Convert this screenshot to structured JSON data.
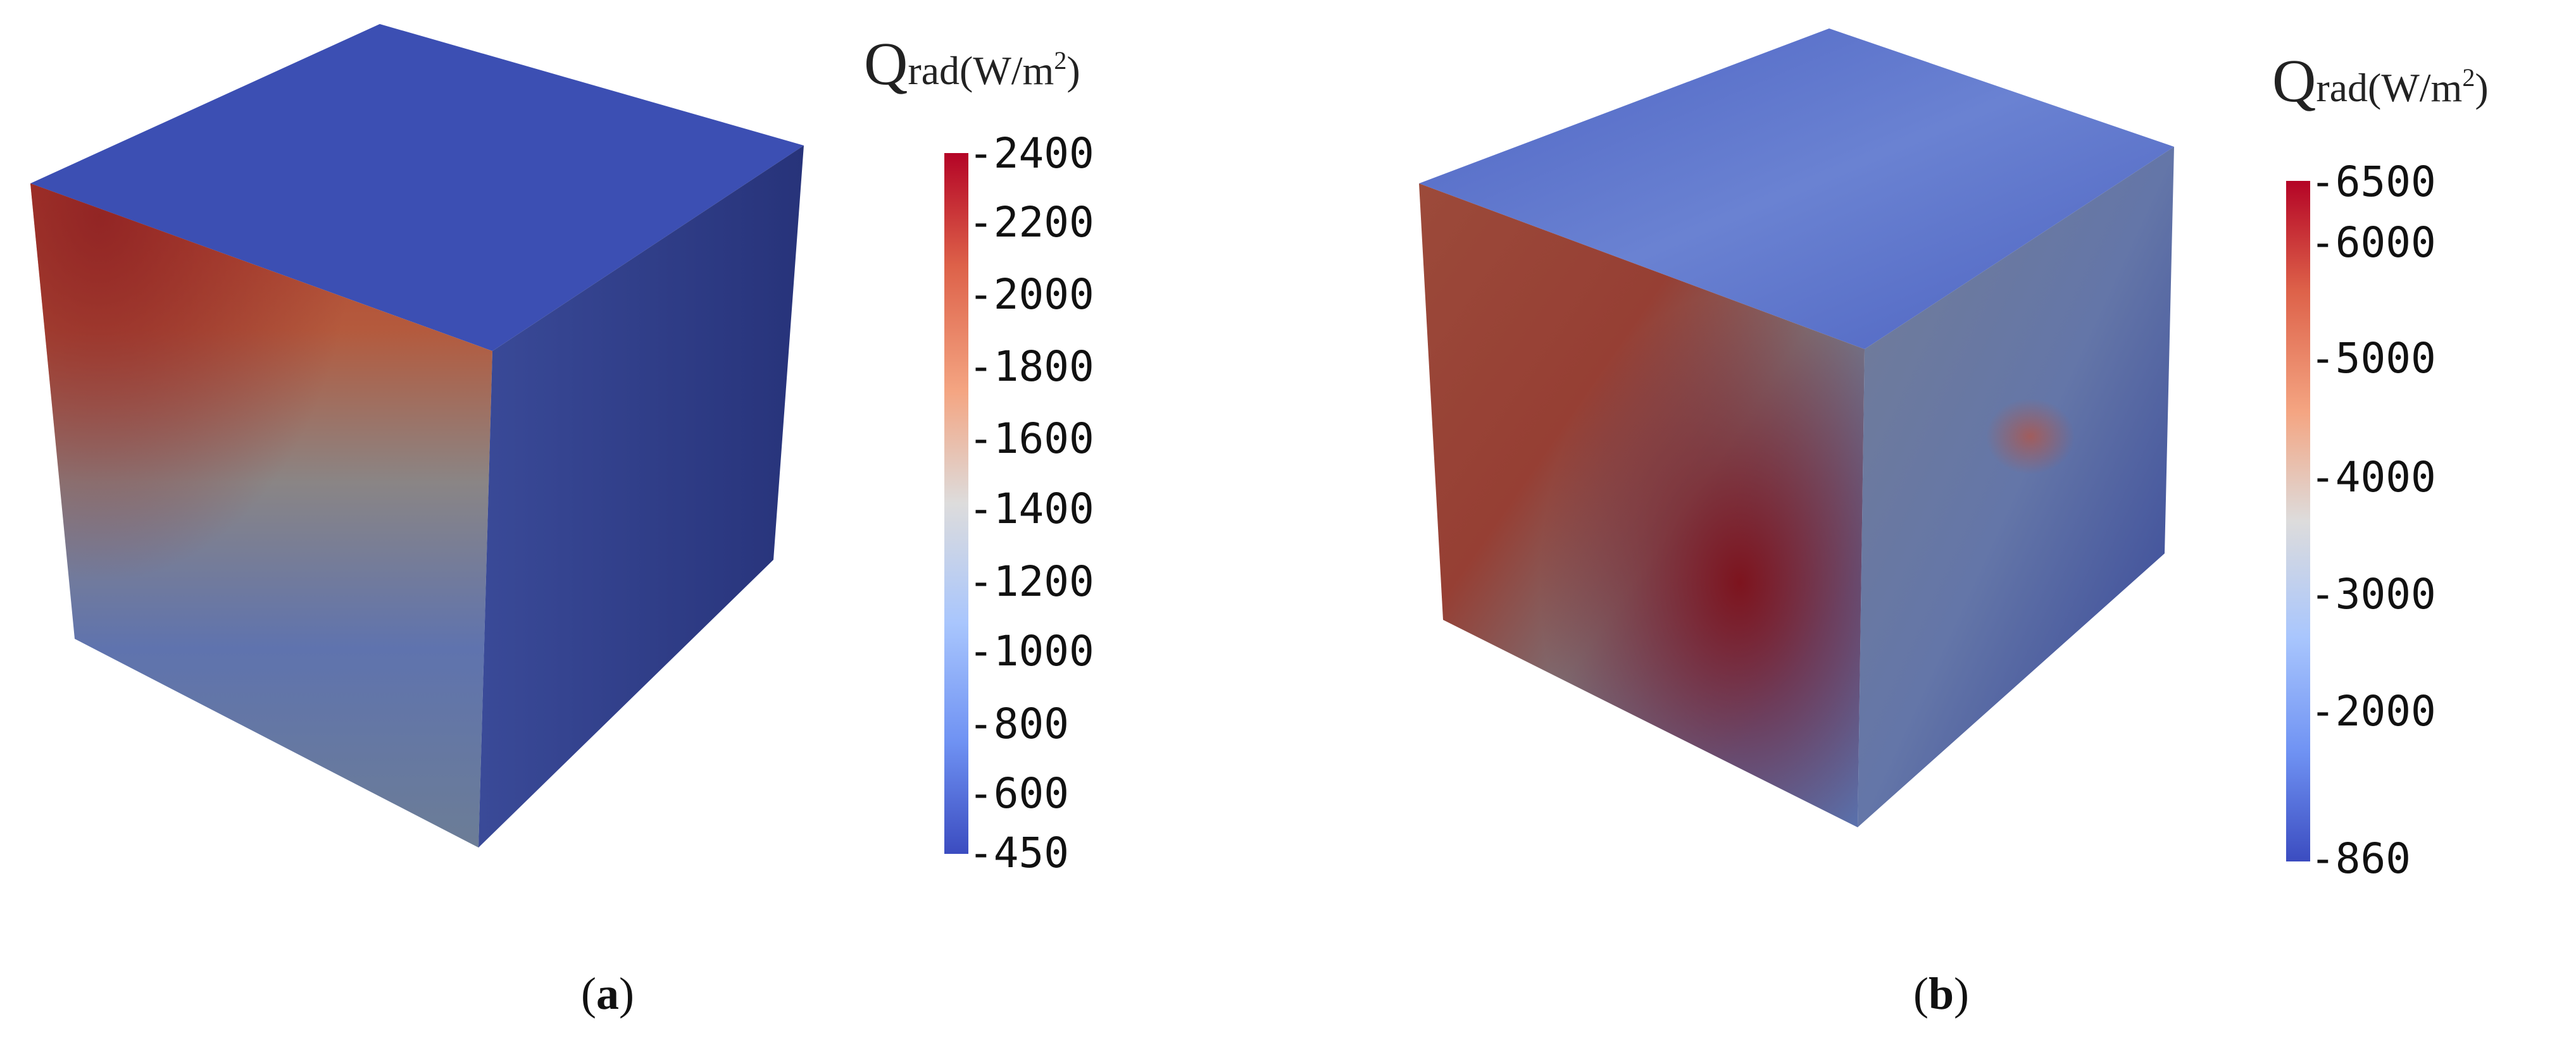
{
  "panels": [
    {
      "caption_open": "(",
      "caption_letter": "a",
      "caption_close": ")",
      "legend": {
        "symbol": "Q",
        "subscript": "rad",
        "unit_prefix": "(W/m",
        "unit_exp": "2",
        "unit_suffix": ")",
        "ticks": [
          "2400",
          "2200",
          "2000",
          "1800",
          "1600",
          "1400",
          "1200",
          "1000",
          "800",
          "600",
          "450"
        ]
      }
    },
    {
      "caption_open": "(",
      "caption_letter": "b",
      "caption_close": ")",
      "legend": {
        "symbol": "Q",
        "subscript": "rad",
        "unit_prefix": "(W/m",
        "unit_exp": "2",
        "unit_suffix": ")",
        "ticks": [
          "6500",
          "6000",
          "5000",
          "4000",
          "3000",
          "2000",
          "860"
        ]
      }
    }
  ],
  "colors": {
    "colormap_high": "#b40426",
    "colormap_mid": "#dddcdc",
    "colormap_low": "#3b4cc0"
  }
}
